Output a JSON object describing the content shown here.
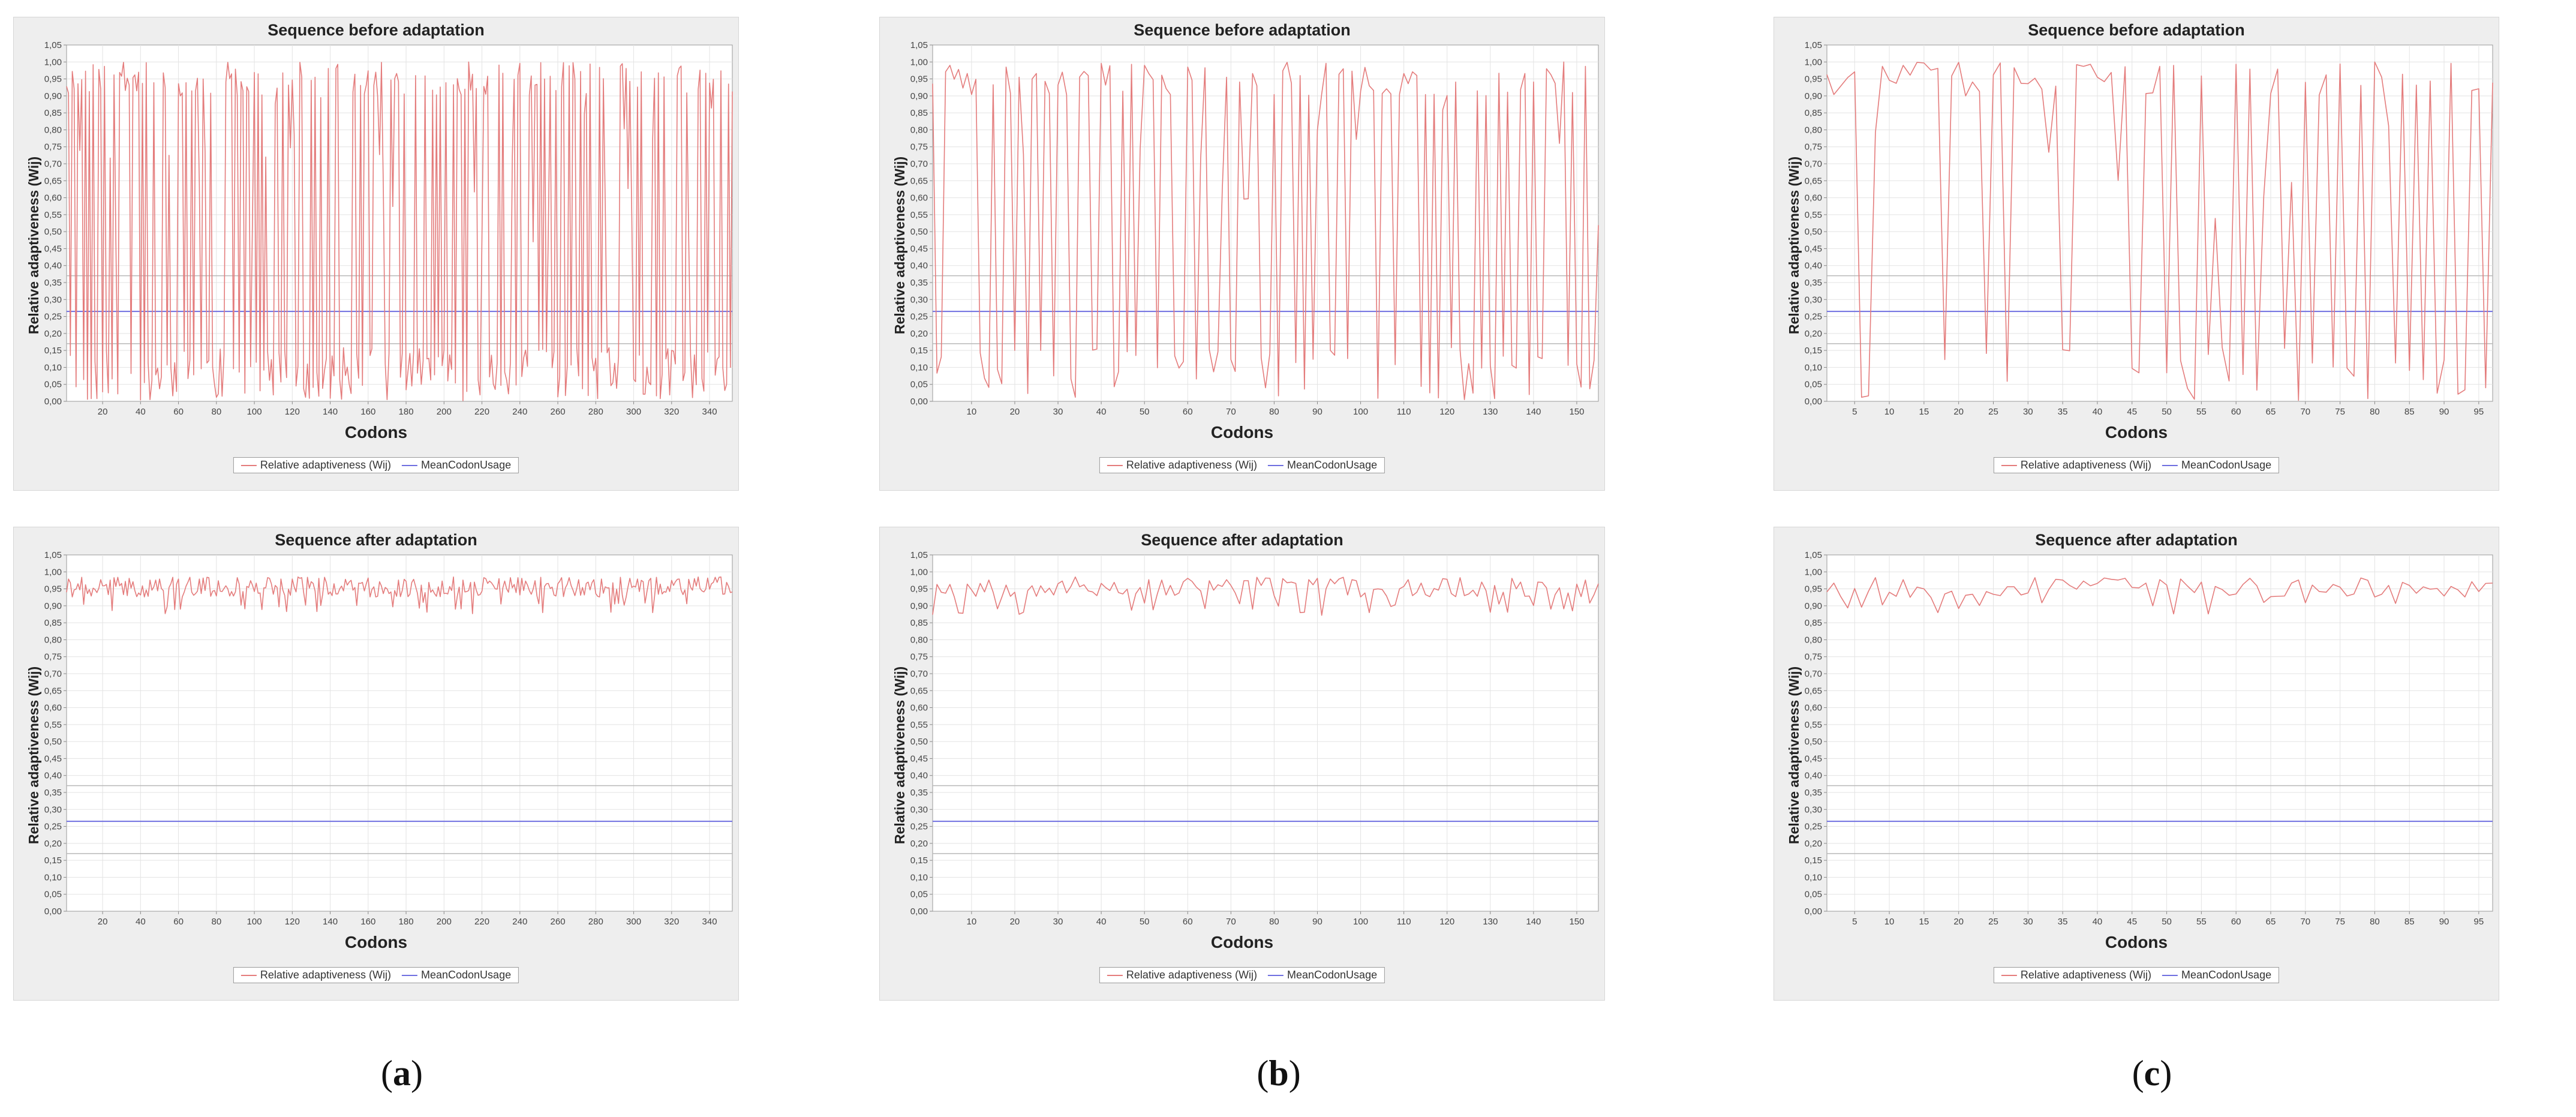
{
  "figure": {
    "captions": [
      {
        "open": "(",
        "letter": "a",
        "close": ")"
      },
      {
        "open": "(",
        "letter": "b",
        "close": ")"
      },
      {
        "open": "(",
        "letter": "c",
        "close": ")"
      }
    ]
  },
  "legend": {
    "series_label": "Relative adaptiveness (Wij)",
    "mean_label": "MeanCodonUsage"
  },
  "colors": {
    "series": "#e47c7c",
    "mean": "#6f6fe0",
    "threshold": "#b8b8b8",
    "grid": "#e3e3e3",
    "plot_bg": "#ffffff",
    "panel_bg": "#eeeeee"
  },
  "chart_data": [
    {
      "id": "a-before",
      "type": "line",
      "title": "Sequence before adaptation",
      "xlabel": "Codons",
      "ylabel": "Relative adaptiveness (Wij)",
      "xlim": [
        1,
        352
      ],
      "xticks": [
        20,
        40,
        60,
        80,
        100,
        120,
        140,
        160,
        180,
        200,
        220,
        240,
        260,
        280,
        300,
        320,
        340
      ],
      "ylim": [
        0,
        1.05
      ],
      "yticks": [
        "0,00",
        "0,05",
        "0,10",
        "0,15",
        "0,20",
        "0,25",
        "0,30",
        "0,35",
        "0,40",
        "0,45",
        "0,50",
        "0,55",
        "0,60",
        "0,65",
        "0,70",
        "0,75",
        "0,80",
        "0,85",
        "0,90",
        "0,95",
        "1,00",
        "1,05"
      ],
      "hlines": [
        {
          "value": 0.37,
          "kind": "threshold"
        },
        {
          "value": 0.265,
          "kind": "mean"
        },
        {
          "value": 0.17,
          "kind": "threshold"
        }
      ],
      "series": {
        "name": "Relative adaptiveness (Wij)",
        "n": 352,
        "seed": 11,
        "mode": "before"
      }
    },
    {
      "id": "b-before",
      "type": "line",
      "title": "Sequence before adaptation",
      "xlabel": "Codons",
      "ylabel": "Relative adaptiveness (Wij)",
      "xlim": [
        1,
        155
      ],
      "xticks": [
        10,
        20,
        30,
        40,
        50,
        60,
        70,
        80,
        90,
        100,
        110,
        120,
        130,
        140,
        150
      ],
      "ylim": [
        0,
        1.05
      ],
      "yticks": [
        "0,00",
        "0,05",
        "0,10",
        "0,15",
        "0,20",
        "0,25",
        "0,30",
        "0,35",
        "0,40",
        "0,45",
        "0,50",
        "0,55",
        "0,60",
        "0,65",
        "0,70",
        "0,75",
        "0,80",
        "0,85",
        "0,90",
        "0,95",
        "1,00",
        "1,05"
      ],
      "hlines": [
        {
          "value": 0.37,
          "kind": "threshold"
        },
        {
          "value": 0.265,
          "kind": "mean"
        },
        {
          "value": 0.17,
          "kind": "threshold"
        }
      ],
      "series": {
        "name": "Relative adaptiveness (Wij)",
        "n": 155,
        "seed": 23,
        "mode": "before"
      }
    },
    {
      "id": "c-before",
      "type": "line",
      "title": "Sequence before adaptation",
      "xlabel": "Codons",
      "ylabel": "Relative adaptiveness (Wij)",
      "xlim": [
        1,
        97
      ],
      "xticks": [
        5,
        10,
        15,
        20,
        25,
        30,
        35,
        40,
        45,
        50,
        55,
        60,
        65,
        70,
        75,
        80,
        85,
        90,
        95
      ],
      "ylim": [
        0,
        1.05
      ],
      "yticks": [
        "0,00",
        "0,05",
        "0,10",
        "0,15",
        "0,20",
        "0,25",
        "0,30",
        "0,35",
        "0,40",
        "0,45",
        "0,50",
        "0,55",
        "0,60",
        "0,65",
        "0,70",
        "0,75",
        "0,80",
        "0,85",
        "0,90",
        "0,95",
        "1,00",
        "1,05"
      ],
      "hlines": [
        {
          "value": 0.37,
          "kind": "threshold"
        },
        {
          "value": 0.265,
          "kind": "mean"
        },
        {
          "value": 0.17,
          "kind": "threshold"
        }
      ],
      "series": {
        "name": "Relative adaptiveness (Wij)",
        "n": 97,
        "seed": 37,
        "mode": "before"
      }
    },
    {
      "id": "a-after",
      "type": "line",
      "title": "Sequence after adaptation",
      "xlabel": "Codons",
      "ylabel": "Relative adaptiveness (Wij)",
      "xlim": [
        1,
        352
      ],
      "xticks": [
        20,
        40,
        60,
        80,
        100,
        120,
        140,
        160,
        180,
        200,
        220,
        240,
        260,
        280,
        300,
        320,
        340
      ],
      "ylim": [
        0,
        1.05
      ],
      "yticks": [
        "0,00",
        "0,05",
        "0,10",
        "0,15",
        "0,20",
        "0,25",
        "0,30",
        "0,35",
        "0,40",
        "0,45",
        "0,50",
        "0,55",
        "0,60",
        "0,65",
        "0,70",
        "0,75",
        "0,80",
        "0,85",
        "0,90",
        "0,95",
        "1,00",
        "1,05"
      ],
      "hlines": [
        {
          "value": 0.37,
          "kind": "threshold"
        },
        {
          "value": 0.265,
          "kind": "mean"
        },
        {
          "value": 0.17,
          "kind": "threshold"
        }
      ],
      "series": {
        "name": "Relative adaptiveness (Wij)",
        "n": 352,
        "seed": 41,
        "mode": "after"
      }
    },
    {
      "id": "b-after",
      "type": "line",
      "title": "Sequence after adaptation",
      "xlabel": "Codons",
      "ylabel": "Relative adaptiveness (Wij)",
      "xlim": [
        1,
        155
      ],
      "xticks": [
        10,
        20,
        30,
        40,
        50,
        60,
        70,
        80,
        90,
        100,
        110,
        120,
        130,
        140,
        150
      ],
      "ylim": [
        0,
        1.05
      ],
      "yticks": [
        "0,00",
        "0,05",
        "0,10",
        "0,15",
        "0,20",
        "0,25",
        "0,30",
        "0,35",
        "0,40",
        "0,45",
        "0,50",
        "0,55",
        "0,60",
        "0,65",
        "0,70",
        "0,75",
        "0,80",
        "0,85",
        "0,90",
        "0,95",
        "1,00",
        "1,05"
      ],
      "hlines": [
        {
          "value": 0.37,
          "kind": "threshold"
        },
        {
          "value": 0.265,
          "kind": "mean"
        },
        {
          "value": 0.17,
          "kind": "threshold"
        }
      ],
      "series": {
        "name": "Relative adaptiveness (Wij)",
        "n": 155,
        "seed": 53,
        "mode": "after"
      }
    },
    {
      "id": "c-after",
      "type": "line",
      "title": "Sequence after adaptation",
      "xlabel": "Codons",
      "ylabel": "Relative adaptiveness (Wij)",
      "xlim": [
        1,
        97
      ],
      "xticks": [
        5,
        10,
        15,
        20,
        25,
        30,
        35,
        40,
        45,
        50,
        55,
        60,
        65,
        70,
        75,
        80,
        85,
        90,
        95
      ],
      "ylim": [
        0,
        1.05
      ],
      "yticks": [
        "0,00",
        "0,05",
        "0,10",
        "0,15",
        "0,20",
        "0,25",
        "0,30",
        "0,35",
        "0,40",
        "0,45",
        "0,50",
        "0,55",
        "0,60",
        "0,65",
        "0,70",
        "0,75",
        "0,80",
        "0,85",
        "0,90",
        "0,95",
        "1,00",
        "1,05"
      ],
      "hlines": [
        {
          "value": 0.37,
          "kind": "threshold"
        },
        {
          "value": 0.265,
          "kind": "mean"
        },
        {
          "value": 0.17,
          "kind": "threshold"
        }
      ],
      "series": {
        "name": "Relative adaptiveness (Wij)",
        "n": 97,
        "seed": 67,
        "mode": "after"
      }
    }
  ]
}
